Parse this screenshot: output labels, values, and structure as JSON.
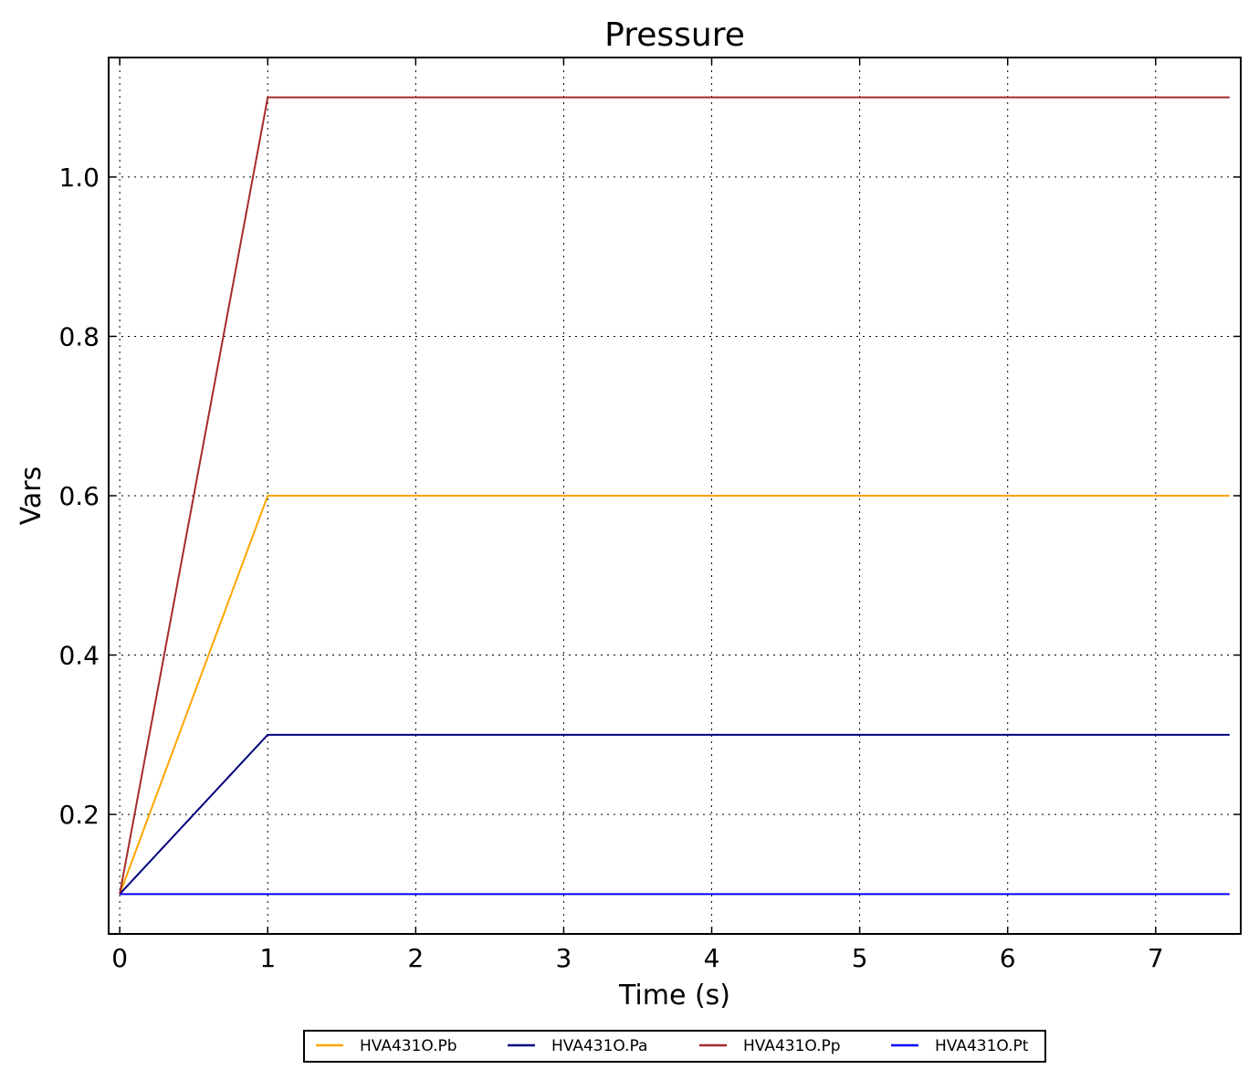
{
  "chart_data": {
    "type": "line",
    "title": "Pressure",
    "xlabel": "Time (s)",
    "ylabel": "Vars",
    "xlim": [
      -0.075,
      7.575
    ],
    "ylim": [
      0.05,
      1.15
    ],
    "xticks": [
      0,
      1,
      2,
      3,
      4,
      5,
      6,
      7
    ],
    "xtick_labels": [
      "0",
      "1",
      "2",
      "3",
      "4",
      "5",
      "6",
      "7"
    ],
    "yticks": [
      0.2,
      0.4,
      0.6,
      0.8,
      1.0
    ],
    "ytick_labels": [
      "0.2",
      "0.4",
      "0.6",
      "0.8",
      "1.0"
    ],
    "grid": true,
    "legend_position": "bottom-center",
    "x": [
      0,
      1,
      7.5
    ],
    "series": [
      {
        "name": "HVA431O.Pb",
        "color": "#ffa500",
        "values": [
          0.1,
          0.6,
          0.6
        ]
      },
      {
        "name": "HVA431O.Pa",
        "color": "#000080",
        "values": [
          0.1,
          0.3,
          0.3
        ]
      },
      {
        "name": "HVA431O.Pp",
        "color": "#a52a2a",
        "values": [
          0.1,
          1.1,
          1.1
        ]
      },
      {
        "name": "HVA431O.Pt",
        "color": "#0000ff",
        "values": [
          0.1,
          0.1,
          0.1
        ]
      }
    ]
  }
}
